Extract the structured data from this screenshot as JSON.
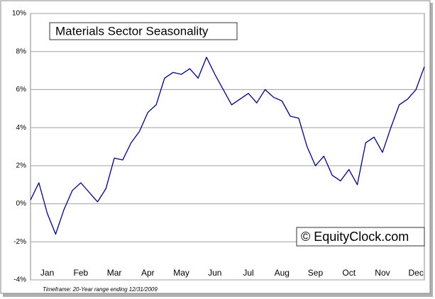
{
  "chart_data": {
    "type": "line",
    "title": "Materials Sector Seasonality",
    "watermark": "© EquityClock.com",
    "footnote": "Timeframe: 20-Year range ending 12/31/2009",
    "categories": [
      null,
      null,
      "Jan",
      null,
      null,
      null,
      "Feb",
      null,
      null,
      null,
      "Mar",
      null,
      null,
      null,
      "Apr",
      null,
      null,
      null,
      "May",
      null,
      null,
      null,
      "Jun",
      null,
      null,
      null,
      "Jul",
      null,
      null,
      null,
      "Aug",
      null,
      null,
      null,
      "Sep",
      null,
      null,
      null,
      "Oct",
      null,
      null,
      null,
      "Nov",
      null,
      null,
      null,
      "Dec",
      null
    ],
    "series": [
      {
        "name": "Materials Sector",
        "color": "#000080",
        "values": [
          0.2,
          1.1,
          -0.5,
          -1.6,
          -0.3,
          0.7,
          1.1,
          0.6,
          0.1,
          0.8,
          2.4,
          2.3,
          3.2,
          3.8,
          4.8,
          5.2,
          6.6,
          6.9,
          6.8,
          7.1,
          6.6,
          7.7,
          6.8,
          6.0,
          5.2,
          5.5,
          5.8,
          5.3,
          6.0,
          5.6,
          5.4,
          4.6,
          4.5,
          3.0,
          2.0,
          2.5,
          1.5,
          1.2,
          1.8,
          1.0,
          3.2,
          3.5,
          2.7,
          4.0,
          5.2,
          5.5,
          6.0,
          7.2
        ]
      }
    ],
    "ylim": [
      -4,
      10
    ],
    "yticks": [
      {
        "value": -4,
        "label": "-4%"
      },
      {
        "value": -2,
        "label": "-2%"
      },
      {
        "value": 0,
        "label": "0%"
      },
      {
        "value": 2,
        "label": "2%"
      },
      {
        "value": 4,
        "label": "4%"
      },
      {
        "value": 6,
        "label": "6%"
      },
      {
        "value": 8,
        "label": "8%"
      },
      {
        "value": 10,
        "label": "10%"
      }
    ],
    "grid": true
  }
}
